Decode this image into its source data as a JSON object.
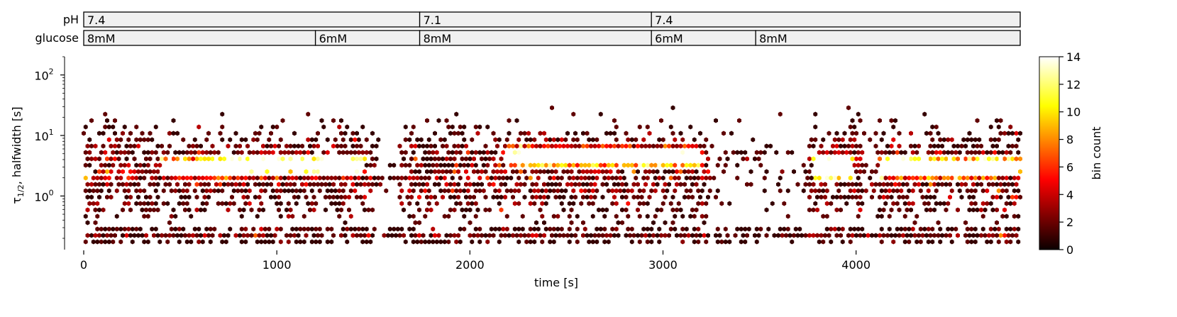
{
  "chart_data": {
    "type": "heatmap",
    "subtype": "hexbin",
    "title": "",
    "xlabel": "time [s]",
    "ylabel_main": "τ",
    "ylabel_sub": "1/2",
    "ylabel_rest": ", halfwidth [s]",
    "xlim": [
      0,
      4850
    ],
    "ylim": [
      0.13,
      200
    ],
    "yscale": "log",
    "xticks": [
      0,
      1000,
      2000,
      3000,
      4000
    ],
    "xtick_labels": [
      "0",
      "1000",
      "2000",
      "3000",
      "4000"
    ],
    "yticks": [
      1,
      10,
      100
    ],
    "ytick_labels": [
      "10",
      "10",
      "10"
    ],
    "ytick_exponents": [
      "0",
      "1",
      "2"
    ],
    "colormap": "hot",
    "colorbar": {
      "label": "bin count",
      "range": [
        0,
        14
      ],
      "ticks": [
        0,
        2,
        4,
        6,
        8,
        10,
        12,
        14
      ],
      "tick_labels": [
        "0",
        "2",
        "4",
        "6",
        "8",
        "10",
        "12",
        "14"
      ]
    },
    "colors": {
      "cmap_low": "#000000",
      "cmap_mid": "#ff0000",
      "cmap_high": "#ffffff",
      "bar_fill": "#f0f0f0"
    },
    "condition_tracks": [
      {
        "name": "pH",
        "segments": [
          {
            "start": 0,
            "end": 1740,
            "label": "7.4"
          },
          {
            "start": 1740,
            "end": 2940,
            "label": "7.1"
          },
          {
            "start": 2940,
            "end": 4850,
            "label": "7.4"
          }
        ]
      },
      {
        "name": "glucose",
        "segments": [
          {
            "start": 0,
            "end": 1200,
            "label": "8mM"
          },
          {
            "start": 1200,
            "end": 1740,
            "label": "6mM"
          },
          {
            "start": 1740,
            "end": 2940,
            "label": "8mM"
          },
          {
            "start": 2940,
            "end": 3480,
            "label": "6mM"
          },
          {
            "start": 3480,
            "end": 4850,
            "label": "8mM"
          }
        ]
      }
    ],
    "density_clusters": [
      {
        "t_start": 400,
        "t_end": 800,
        "tau_center": 3.0,
        "weight": 1.5
      },
      {
        "t_start": 780,
        "t_end": 1450,
        "tau_center": 3.2,
        "weight": 2.5
      },
      {
        "t_start": 2180,
        "t_end": 3200,
        "tau_center": 4.5,
        "weight": 3.5
      },
      {
        "t_start": 3780,
        "t_end": 3980,
        "tau_center": 3.0,
        "weight": 2.0
      },
      {
        "t_start": 4120,
        "t_end": 4850,
        "tau_center": 3.0,
        "weight": 3.0
      }
    ]
  }
}
